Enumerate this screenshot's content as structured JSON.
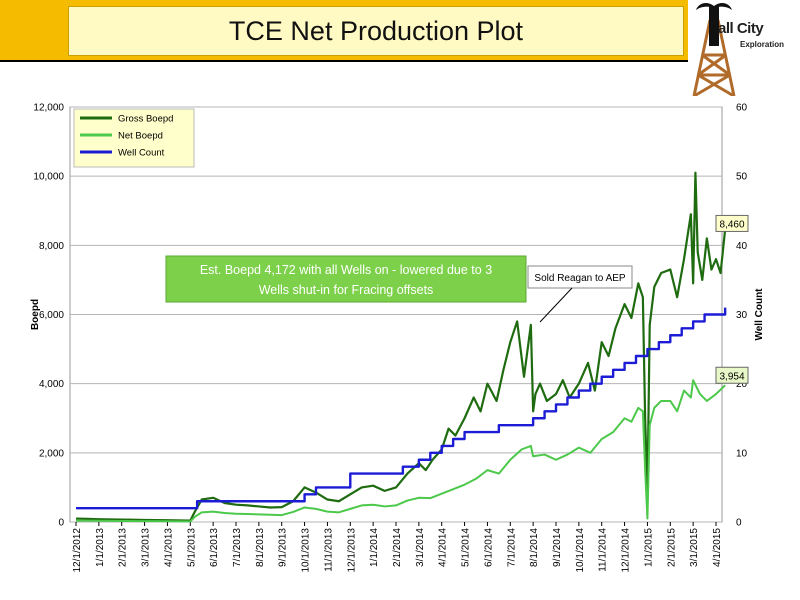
{
  "header": {
    "title": "TCE Net Production Plot",
    "logo_text": "all City",
    "logo_sub": "Exploration"
  },
  "colors": {
    "title_bar": "#f5bb00",
    "gross": "#1e6b10",
    "net": "#4cc84a",
    "wells": "#1c1cd6",
    "annotation_fill": "#7dd04a",
    "legend_fill": "#ffffcc"
  },
  "chart_data": {
    "type": "line",
    "ylabel": "Boepd",
    "y2label": "Well Count",
    "ylim": [
      0,
      12000
    ],
    "y2lim": [
      0,
      60
    ],
    "yticks": [
      "0",
      "2,000",
      "4,000",
      "6,000",
      "8,000",
      "10,000",
      "12,000"
    ],
    "y2ticks": [
      "0",
      "10",
      "20",
      "30",
      "40",
      "50",
      "60"
    ],
    "xticks": [
      "12/1/2012",
      "1/1/2013",
      "2/1/2013",
      "3/1/2013",
      "4/1/2013",
      "5/1/2013",
      "6/1/2013",
      "7/1/2013",
      "8/1/2013",
      "9/1/2013",
      "10/1/2013",
      "11/1/2013",
      "12/1/2013",
      "1/1/2014",
      "2/1/2014",
      "3/1/2014",
      "4/1/2014",
      "5/1/2014",
      "6/1/2014",
      "7/1/2014",
      "8/1/2014",
      "9/1/2014",
      "10/1/2014",
      "11/1/2014",
      "12/1/2014",
      "1/1/2015",
      "2/1/2015",
      "3/1/2015",
      "4/1/2015"
    ],
    "grid": "horizontal",
    "legend_position": "top-left",
    "series": [
      {
        "name": "Gross Boepd",
        "axis": "left",
        "x": [
          0,
          0.5,
          1,
          2,
          3,
          4,
          5,
          5.2,
          5.5,
          6,
          6.5,
          7,
          7.5,
          8,
          8.5,
          9,
          9.5,
          10,
          10.5,
          11,
          11.5,
          12,
          12.5,
          13,
          13.5,
          14,
          14.5,
          15,
          15.3,
          15.6,
          16,
          16.3,
          16.6,
          17,
          17.4,
          17.7,
          18,
          18.4,
          18.7,
          19,
          19.3,
          19.6,
          19.9,
          20,
          20.1,
          20.3,
          20.6,
          21,
          21.3,
          21.6,
          22,
          22.4,
          22.7,
          23,
          23.3,
          23.6,
          24,
          24.3,
          24.6,
          24.8,
          24.9,
          25.0,
          25.1,
          25.3,
          25.6,
          26,
          26.3,
          26.6,
          26.9,
          27,
          27.1,
          27.2,
          27.4,
          27.6,
          27.8,
          28,
          28.2,
          28.4
        ],
        "values": [
          100,
          90,
          80,
          70,
          60,
          50,
          40,
          300,
          650,
          700,
          550,
          500,
          480,
          450,
          420,
          430,
          600,
          1000,
          850,
          650,
          600,
          800,
          1000,
          1050,
          900,
          1000,
          1400,
          1700,
          1500,
          1800,
          2100,
          2700,
          2500,
          3000,
          3600,
          3200,
          4000,
          3500,
          4400,
          5200,
          5800,
          4200,
          5700,
          3200,
          3700,
          4000,
          3500,
          3700,
          4100,
          3600,
          4000,
          4600,
          3800,
          5200,
          4800,
          5600,
          6300,
          5900,
          6900,
          6500,
          3000,
          800,
          5700,
          6800,
          7200,
          7300,
          6500,
          7600,
          8900,
          6900,
          10100,
          7800,
          7000,
          8200,
          7300,
          7600,
          7200,
          8460
        ]
      },
      {
        "name": "Net Boepd",
        "axis": "left",
        "x": [
          0,
          1,
          2,
          3,
          4,
          5,
          5.2,
          5.5,
          6,
          6.5,
          7,
          7.5,
          8,
          8.5,
          9,
          9.5,
          10,
          10.5,
          11,
          11.5,
          12,
          12.5,
          13,
          13.5,
          14,
          14.5,
          15,
          15.5,
          16,
          16.5,
          17,
          17.5,
          18,
          18.5,
          19,
          19.5,
          19.9,
          20,
          20.5,
          21,
          21.5,
          22,
          22.5,
          23,
          23.5,
          24,
          24.3,
          24.6,
          24.8,
          24.9,
          25.0,
          25.1,
          25.3,
          25.6,
          26,
          26.3,
          26.6,
          26.9,
          27,
          27.3,
          27.6,
          28,
          28.4
        ],
        "values": [
          40,
          35,
          30,
          25,
          20,
          15,
          150,
          280,
          300,
          260,
          240,
          230,
          220,
          210,
          200,
          290,
          420,
          380,
          300,
          280,
          380,
          480,
          500,
          450,
          480,
          620,
          700,
          690,
          820,
          950,
          1080,
          1250,
          1500,
          1400,
          1800,
          2100,
          2200,
          1900,
          1950,
          1800,
          1950,
          2150,
          2000,
          2400,
          2600,
          3000,
          2900,
          3300,
          3200,
          1500,
          100,
          2800,
          3300,
          3500,
          3500,
          3200,
          3800,
          3600,
          4100,
          3700,
          3500,
          3700,
          3954
        ]
      },
      {
        "name": "Well Count",
        "axis": "right",
        "step": true,
        "x": [
          0,
          5,
          5.3,
          6,
          7.5,
          8,
          9.5,
          10,
          10.5,
          11,
          12,
          13,
          14.3,
          15,
          15.5,
          16,
          16.5,
          17,
          17.5,
          18,
          18.5,
          19,
          19.5,
          20,
          20.5,
          21,
          21.5,
          22,
          22.5,
          23,
          23.5,
          24,
          24.5,
          25,
          25.5,
          26,
          26.5,
          27,
          27.5,
          28,
          28.4
        ],
        "values": [
          2,
          2,
          3,
          3,
          3,
          3,
          3,
          4,
          5,
          5,
          7,
          7,
          8,
          9,
          10,
          11,
          12,
          13,
          13,
          13,
          14,
          14,
          14,
          15,
          16,
          17,
          18,
          19,
          20,
          21,
          22,
          23,
          24,
          25,
          26,
          27,
          28,
          29,
          30,
          30,
          31
        ]
      }
    ],
    "end_labels": {
      "gross": "8,460",
      "net": "3,954"
    },
    "annotations": {
      "main": [
        "Est. Boepd 4,172 with all Wells on  - lowered due to 3",
        "Wells shut-in for Fracing offsets"
      ],
      "callout": "Sold Reagan to AEP"
    }
  }
}
